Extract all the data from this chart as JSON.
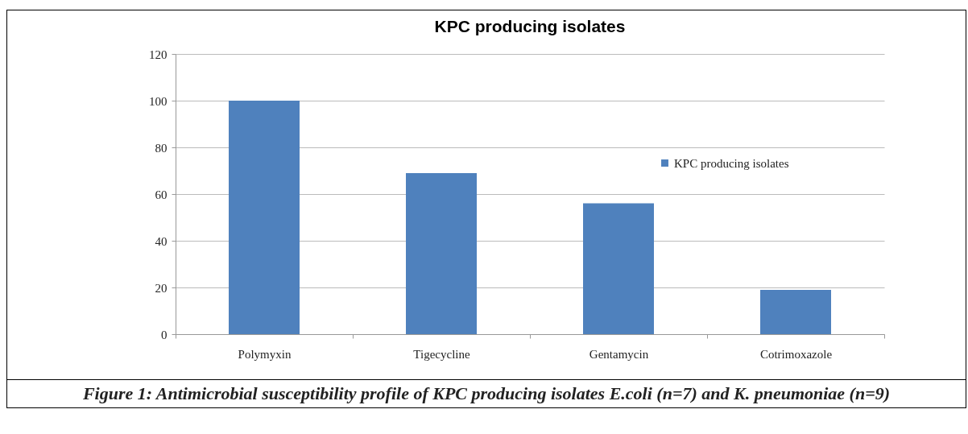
{
  "chart_data": {
    "type": "bar",
    "title": "KPC producing isolates",
    "categories": [
      "Polymyxin",
      "Tigecycline",
      "Gentamycin",
      "Cotrimoxazole"
    ],
    "series": [
      {
        "name": "KPC producing isolates",
        "color": "#4f81bd",
        "values": [
          100,
          69,
          56,
          19
        ]
      }
    ],
    "ylim": [
      0,
      120
    ],
    "yticks": [
      0,
      20,
      40,
      60,
      80,
      100,
      120
    ],
    "grid": "y",
    "legend": "right",
    "annotations": [
      "Figure 1: Antimicrobial susceptibility profile of KPC producing isolates E.coli (n=7) and K. pneumoniae (n=9)"
    ]
  }
}
